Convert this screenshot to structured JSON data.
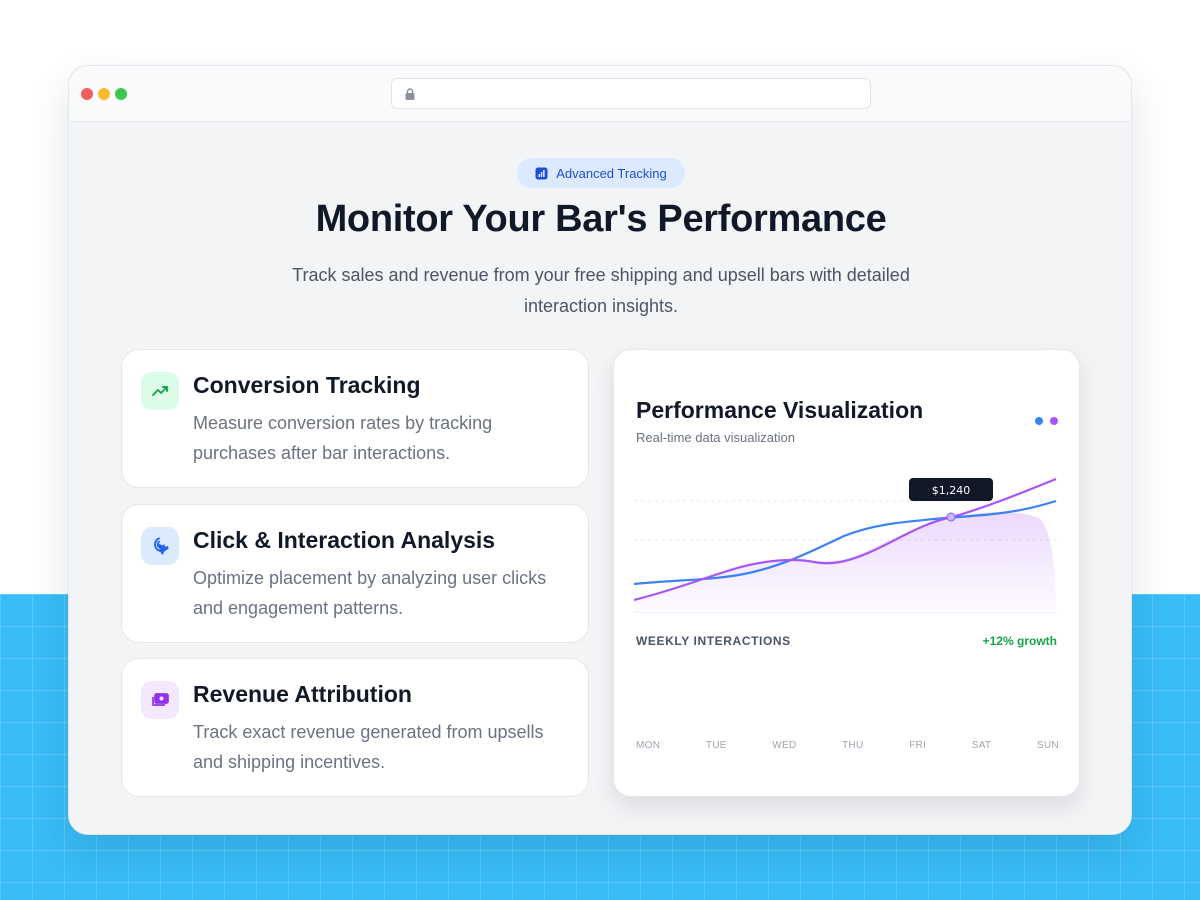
{
  "badge": {
    "label": "Advanced Tracking",
    "icon": "bar-chart-icon"
  },
  "headline": "Monitor Your Bar's Performance",
  "subheadline": "Track sales and revenue from your free shipping and upsell bars with detailed interaction insights.",
  "features": [
    {
      "title": "Conversion Tracking",
      "description": "Measure conversion rates by tracking purchases after bar interactions.",
      "icon": "trending-up-icon",
      "color": "#16a34a"
    },
    {
      "title": "Click & Interaction Analysis",
      "description": "Optimize placement by analyzing user clicks and engagement patterns.",
      "icon": "cursor-click-icon",
      "color": "#2563eb"
    },
    {
      "title": "Revenue Attribution",
      "description": "Track exact revenue generated from upsells and shipping incentives.",
      "icon": "money-icon",
      "color": "#9333ea"
    }
  ],
  "panel": {
    "title": "Performance Visualization",
    "subtitle": "Real-time data visualization",
    "tooltip": "$1,240",
    "weekly_label": "WEEKLY INTERACTIONS",
    "growth": "+12% growth",
    "days": [
      "MON",
      "TUE",
      "WED",
      "THU",
      "FRI",
      "SAT",
      "SUN"
    ]
  },
  "colors": {
    "accent_blue": "#3b82f6",
    "accent_purple": "#a855f7",
    "growth_green": "#16a34a",
    "background_blue": "#38bdf8"
  }
}
